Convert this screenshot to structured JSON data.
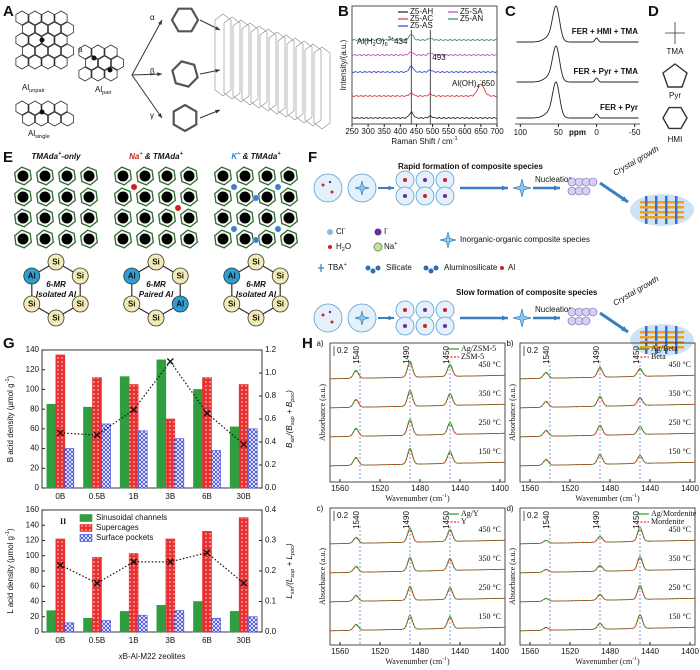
{
  "panels": {
    "A": {
      "label": "A",
      "al_unpair": [
        "Al",
        "unpair"
      ],
      "al_pair": [
        "Al",
        "pair"
      ],
      "al_single": [
        "Al",
        "single"
      ],
      "site": "a",
      "paths": [
        "α",
        "β",
        "γ"
      ]
    },
    "B": {
      "label": "B",
      "legend": [
        {
          "name": "Z5-AH",
          "color": "#222222"
        },
        {
          "name": "Z5-AC",
          "color": "#e03030"
        },
        {
          "name": "Z5-AS",
          "color": "#2f3fd0"
        },
        {
          "name": "Z5-SA",
          "color": "#c040c0"
        },
        {
          "name": "Z5-AN",
          "color": "#2e8b57"
        }
      ],
      "y_label": "Intensity/(a.u.)",
      "x_label": [
        "Raman Shift / cm",
        "-1"
      ],
      "xlim": [
        250,
        700
      ],
      "xticks": [
        250,
        300,
        350,
        400,
        450,
        500,
        550,
        600,
        650,
        700
      ],
      "marks": [
        434,
        493
      ],
      "ann_1": [
        "Al(H",
        "2",
        "O)",
        "6",
        "3+",
        "434"
      ],
      "ann_2": "493",
      "ann_3": [
        "Al(OH)",
        "4",
        "-",
        "650"
      ]
    },
    "C": {
      "label": "C",
      "traces": [
        "FER + HMI + TMA",
        "FER + Pyr + TMA",
        "FER + Pyr"
      ],
      "x_label": "ppm",
      "xlim": [
        107,
        -57
      ],
      "xticks": [
        100,
        50,
        0,
        -50
      ]
    },
    "D": {
      "label": "D",
      "molecules": [
        "TMA",
        "Pyr",
        "HMI"
      ]
    },
    "E": {
      "label": "E",
      "atom_colors": {
        "Al": "#2b9fd0",
        "Si": "#f3ebb5"
      },
      "titles": [
        {
          "parts": [
            "TMAda",
            "+",
            "-only"
          ],
          "colors": [
            "#111111",
            "#111111",
            "#111111"
          ]
        },
        {
          "parts": [
            "Na",
            "+",
            " & TMAda",
            "+"
          ],
          "colors": [
            "#d02020",
            "#d02020",
            "#111111",
            "#111111"
          ]
        },
        {
          "parts": [
            "K",
            "+",
            " & TMAda",
            "+"
          ],
          "colors": [
            "#2b7fd0",
            "#2b7fd0",
            "#111111",
            "#111111"
          ]
        }
      ],
      "cation_colors": [
        "#000000",
        "#d02020",
        "#3a7fd0"
      ],
      "rings": [
        {
          "atoms": [
            "Al",
            "Si",
            "Si",
            "Si",
            "Si",
            "Si"
          ],
          "caption": [
            "6-MR",
            "Isolated Al"
          ]
        },
        {
          "atoms": [
            "Al",
            "Si",
            "Si",
            "Al",
            "Si",
            "Si"
          ],
          "caption": [
            "6-MR",
            "Paired Al"
          ]
        },
        {
          "atoms": [
            "Al",
            "Si",
            "Si",
            "Si",
            "Si",
            "Si"
          ],
          "caption": [
            "6-MR",
            "Isolated Al"
          ]
        }
      ]
    },
    "F": {
      "label": "F",
      "rapid": "Rapid formation of composite species",
      "slow": "Slow formation of composite species",
      "nucleation": "Nucleation",
      "growth": "Crystal growth",
      "legend": {
        "cl": [
          "Cl",
          "-"
        ],
        "i": [
          "I",
          "-"
        ],
        "h2o": [
          "H",
          "2",
          "O"
        ],
        "na": [
          "Na",
          "+"
        ],
        "composite": "Inorganic-organic composite species",
        "tba": [
          "TBA",
          "+"
        ],
        "silicate": "Silicate",
        "aluminosilicate": "Aluminosilicate",
        "al": "Al"
      }
    },
    "G": {
      "label": "G"
    },
    "H": {
      "label": "H",
      "panels": [
        {
          "tag": "a)",
          "legend": [
            "Ag/ZSM-5",
            "ZSM-5"
          ]
        },
        {
          "tag": "b)",
          "legend": [
            "Ag/Beta",
            "Beta"
          ]
        },
        {
          "tag": "c)",
          "legend": [
            "Ag/Y",
            "Y"
          ]
        },
        {
          "tag": "d)",
          "legend": [
            "Ag/Mordenite",
            "Mordenite"
          ]
        }
      ],
      "scale": "0.2",
      "temps": [
        "450 °C",
        "350 °C",
        "250 °C",
        "150 °C"
      ],
      "peaks": [
        1540,
        1490,
        1450
      ],
      "xlim": [
        1570,
        1395
      ],
      "xticks": [
        1560,
        1520,
        1480,
        1440,
        1400
      ],
      "y_label": "Absorbance (a.u.)",
      "x_label": [
        "Wavenumber (cm",
        "-1",
        ")"
      ],
      "colors": [
        "#2a9a2a",
        "#e03030"
      ]
    }
  },
  "chart_data": [
    {
      "type": "bar",
      "label": "I",
      "categories": [
        "0B",
        "0.5B",
        "1B",
        "3B",
        "6B",
        "30B"
      ],
      "series": [
        {
          "color": "#2e9e3e",
          "hatch": "none",
          "values": [
            85,
            82,
            113,
            130,
            100,
            62
          ]
        },
        {
          "color": "#e83030",
          "hatch": "dots",
          "values": [
            135,
            112,
            105,
            70,
            112,
            105
          ]
        },
        {
          "color": "#3a46d8",
          "hatch": "cross",
          "values": [
            40,
            65,
            58,
            50,
            38,
            60
          ]
        },
        {
          "color": "#111111",
          "axis": "y2",
          "values": [
            0.48,
            0.46,
            0.68,
            1.1,
            0.65,
            0.38
          ]
        }
      ],
      "ylim": [
        0,
        140
      ],
      "yticks": [
        0,
        20,
        40,
        60,
        80,
        100,
        120,
        140
      ],
      "y2lim": [
        0,
        1.2
      ],
      "y2ticks": [
        {
          "value": 0,
          "label": "0.0"
        },
        0.2,
        0.4,
        0.6,
        0.8,
        {
          "value": 1,
          "label": "1.0"
        },
        1.2
      ],
      "ylabel": [
        "B acid density (μmol g",
        "-1",
        ")"
      ],
      "y2label": [
        "B",
        "sin",
        "/(B",
        "sup",
        " + B",
        "poc",
        ")"
      ]
    },
    {
      "type": "bar",
      "label": "II",
      "categories": [
        "0B",
        "0.5B",
        "1B",
        "3B",
        "6B",
        "30B"
      ],
      "series": [
        {
          "name": "Sinusoidal channels",
          "color": "#2e9e3e",
          "hatch": "none",
          "values": [
            28,
            18,
            27,
            35,
            40,
            27
          ]
        },
        {
          "name": "Supercages",
          "color": "#e83030",
          "hatch": "dots",
          "values": [
            122,
            98,
            103,
            122,
            132,
            150
          ]
        },
        {
          "name": "Surface pockets",
          "color": "#3a46d8",
          "hatch": "cross",
          "values": [
            12,
            15,
            22,
            28,
            18,
            20
          ]
        },
        {
          "color": "#111111",
          "axis": "y2",
          "values": [
            0.22,
            0.16,
            0.23,
            0.23,
            0.26,
            0.16
          ]
        }
      ],
      "ylim": [
        0,
        160
      ],
      "yticks": [
        0,
        20,
        40,
        60,
        80,
        100,
        120,
        140,
        160
      ],
      "y2lim": [
        0,
        0.4
      ],
      "y2ticks": [
        {
          "value": 0,
          "label": "0.0"
        },
        0.1,
        0.2,
        0.3,
        0.4
      ],
      "ylabel": [
        "L acid density (μmol g",
        "-1",
        ")"
      ],
      "y2label": [
        "L",
        "sin",
        "/(L",
        "sup",
        " + L",
        "poc",
        ")"
      ],
      "xlabel": [
        "x",
        "B-Al-M22 zeolites"
      ]
    }
  ]
}
